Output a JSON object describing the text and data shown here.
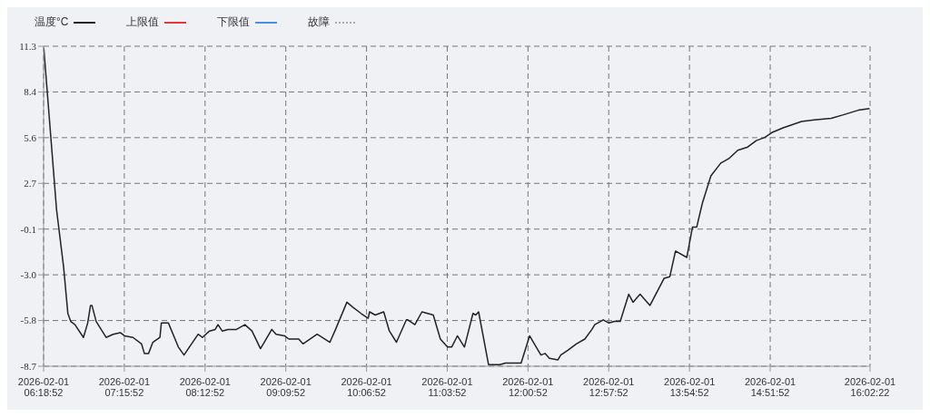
{
  "chart_data": {
    "type": "line",
    "xlim": [
      "2026-02-01T06:18:52",
      "2026-02-01T16:02:22"
    ],
    "xticks": [
      {
        "value": "2026-02-01T06:18:52",
        "label": "2026-02-01\n06:18:52"
      },
      {
        "value": "2026-02-01T07:15:52",
        "label": "2026-02-01\n07:15:52"
      },
      {
        "value": "2026-02-01T08:12:52",
        "label": "2026-02-01\n08:12:52"
      },
      {
        "value": "2026-02-01T09:09:52",
        "label": "2026-02-01\n09:09:52"
      },
      {
        "value": "2026-02-01T10:06:52",
        "label": "2026-02-01\n10:06:52"
      },
      {
        "value": "2026-02-01T11:03:52",
        "label": "2026-02-01\n11:03:52"
      },
      {
        "value": "2026-02-01T12:00:52",
        "label": "2026-02-01\n12:00:52"
      },
      {
        "value": "2026-02-01T12:57:52",
        "label": "2026-02-01\n12:57:52"
      },
      {
        "value": "2026-02-01T13:54:52",
        "label": "2026-02-01\n13:54:52"
      },
      {
        "value": "2026-02-01T14:51:52",
        "label": "2026-02-01\n14:51:52"
      },
      {
        "value": "2026-02-01T16:02:22",
        "label": "2026-02-01\n16:02:22"
      }
    ],
    "ylim": [
      -8.7,
      11.3
    ],
    "yticks": [
      -8.7,
      {
        "value": -5.843,
        "label": "-5.8"
      },
      {
        "value": -2.986,
        "label": "-3.0"
      },
      {
        "value": -0.129,
        "label": "-0.1"
      },
      {
        "value": 2.729,
        "label": "2.7"
      },
      {
        "value": 5.586,
        "label": "5.6"
      },
      {
        "value": 8.443,
        "label": "8.4"
      },
      11.3
    ],
    "grid": true,
    "legend": "top left",
    "marker": "none",
    "series": [
      {
        "name": "温度°C",
        "color": "#222222",
        "line_style": "solid",
        "x": [
          "2026-02-01T06:19",
          "2026-02-01T06:28",
          "2026-02-01T06:33",
          "2026-02-01T06:36",
          "2026-02-01T06:38",
          "2026-02-01T06:41",
          "2026-02-01T06:47",
          "2026-02-01T06:50",
          "2026-02-01T06:52",
          "2026-02-01T06:53",
          "2026-02-01T06:56",
          "2026-02-01T07:03",
          "2026-02-01T07:08",
          "2026-02-01T07:13",
          "2026-02-01T07:16",
          "2026-02-01T07:22",
          "2026-02-01T07:28",
          "2026-02-01T07:30",
          "2026-02-01T07:33",
          "2026-02-01T07:36",
          "2026-02-01T07:41",
          "2026-02-01T07:42",
          "2026-02-01T07:47",
          "2026-02-01T07:54",
          "2026-02-01T07:58",
          "2026-02-01T08:08",
          "2026-02-01T08:11",
          "2026-02-01T08:16",
          "2026-02-01T08:20",
          "2026-02-01T08:22",
          "2026-02-01T08:25",
          "2026-02-01T08:29",
          "2026-02-01T08:35",
          "2026-02-01T08:41",
          "2026-02-01T08:46",
          "2026-02-01T08:52",
          "2026-02-01T09:00",
          "2026-02-01T09:03",
          "2026-02-01T09:09",
          "2026-02-01T09:12",
          "2026-02-01T09:19",
          "2026-02-01T09:22",
          "2026-02-01T09:32",
          "2026-02-01T09:41",
          "2026-02-01T09:45",
          "2026-02-01T09:53",
          "2026-02-01T09:57",
          "2026-02-01T10:03",
          "2026-02-01T10:08",
          "2026-02-01T10:09",
          "2026-02-01T10:13",
          "2026-02-01T10:19",
          "2026-02-01T10:23",
          "2026-02-01T10:28",
          "2026-02-01T10:35",
          "2026-02-01T10:36",
          "2026-02-01T10:41",
          "2026-02-01T10:46",
          "2026-02-01T10:54",
          "2026-02-01T10:59",
          "2026-02-01T11:04",
          "2026-02-01T11:07",
          "2026-02-01T11:11",
          "2026-02-01T11:16",
          "2026-02-01T11:22",
          "2026-02-01T11:24",
          "2026-02-01T11:26",
          "2026-02-01T11:33",
          "2026-02-01T11:37",
          "2026-02-01T11:41",
          "2026-02-01T11:45",
          "2026-02-01T11:49",
          "2026-02-01T11:56",
          "2026-02-01T12:02",
          "2026-02-01T12:06",
          "2026-02-01T12:10",
          "2026-02-01T12:13",
          "2026-02-01T12:16",
          "2026-02-01T12:22",
          "2026-02-01T12:24",
          "2026-02-01T12:29",
          "2026-02-01T12:35",
          "2026-02-01T12:41",
          "2026-02-01T12:46",
          "2026-02-01T12:48",
          "2026-02-01T12:54",
          "2026-02-01T12:58",
          "2026-02-01T13:02",
          "2026-02-01T13:06",
          "2026-02-01T13:12",
          "2026-02-01T13:15",
          "2026-02-01T13:20",
          "2026-02-01T13:27",
          "2026-02-01T13:37",
          "2026-02-01T13:41",
          "2026-02-01T13:45",
          "2026-02-01T13:53",
          "2026-02-01T13:57",
          "2026-02-01T14:00",
          "2026-02-01T14:04",
          "2026-02-01T14:10",
          "2026-02-01T14:17",
          "2026-02-01T14:23",
          "2026-02-01T14:29",
          "2026-02-01T14:36",
          "2026-02-01T14:42",
          "2026-02-01T14:48",
          "2026-02-01T14:53",
          "2026-02-01T15:01",
          "2026-02-01T15:14",
          "2026-02-01T15:23",
          "2026-02-01T15:35",
          "2026-02-01T15:43",
          "2026-02-01T15:54",
          "2026-02-01T16:02"
        ],
        "values": [
          11.2,
          1.1,
          -2.5,
          -5.4,
          -5.9,
          -6.1,
          -6.9,
          -6.0,
          -4.9,
          -4.9,
          -5.9,
          -6.9,
          -6.7,
          -6.6,
          -6.8,
          -6.9,
          -7.3,
          -7.9,
          -7.9,
          -7.2,
          -6.9,
          -6.0,
          -6.0,
          -7.5,
          -8.0,
          -6.7,
          -6.9,
          -6.5,
          -6.4,
          -6.1,
          -6.5,
          -6.4,
          -6.4,
          -6.1,
          -6.5,
          -7.6,
          -6.4,
          -6.7,
          -6.8,
          -7.0,
          -7.0,
          -7.3,
          -6.7,
          -7.2,
          -6.4,
          -4.7,
          -5.0,
          -5.4,
          -5.7,
          -5.3,
          -5.5,
          -5.3,
          -6.5,
          -7.2,
          -5.8,
          -5.8,
          -6.1,
          -5.3,
          -5.5,
          -7.0,
          -7.5,
          -7.5,
          -6.8,
          -7.5,
          -5.4,
          -5.5,
          -5.3,
          -8.6,
          -8.6,
          -8.6,
          -8.5,
          -8.5,
          -8.5,
          -6.8,
          -7.4,
          -8.0,
          -7.9,
          -8.2,
          -8.3,
          -8.0,
          -7.7,
          -7.3,
          -7.0,
          -6.4,
          -6.1,
          -5.8,
          -6.0,
          -5.9,
          -5.9,
          -4.2,
          -4.7,
          -4.2,
          -4.9,
          -3.2,
          -3.1,
          -1.5,
          -1.9,
          0.0,
          0.0,
          1.5,
          3.2,
          4.0,
          4.3,
          4.8,
          5.0,
          5.4,
          5.6,
          5.9,
          6.2,
          6.6,
          6.7,
          6.8,
          7.0,
          7.3,
          7.4
        ]
      },
      {
        "name": "上限值",
        "color": "#e53935",
        "line_style": "solid"
      },
      {
        "name": "下限值",
        "color": "#4a90e2",
        "line_style": "solid"
      },
      {
        "name": "故障",
        "color": "#aaaaaa",
        "line_style": "dotted"
      }
    ]
  }
}
